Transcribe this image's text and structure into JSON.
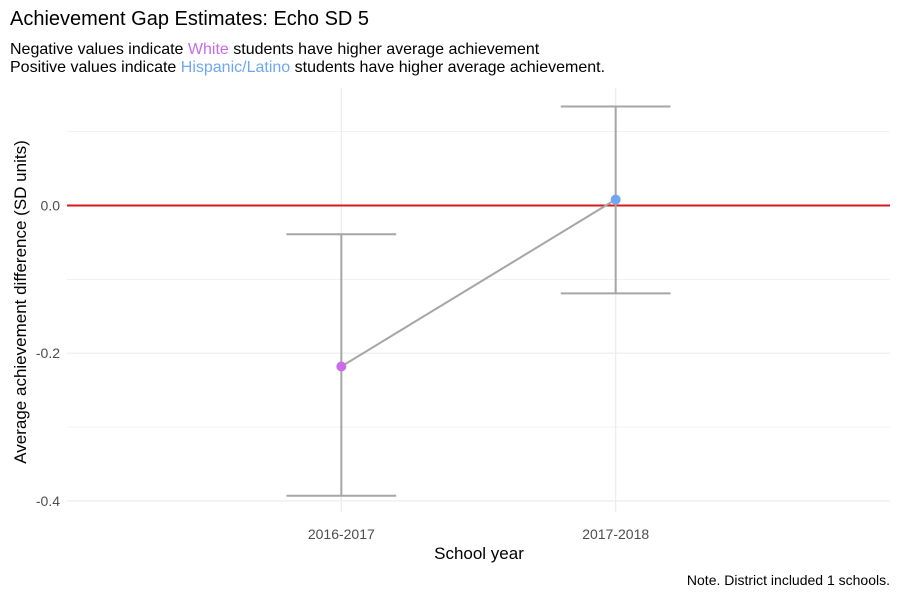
{
  "chart_data": {
    "type": "errorbar-line",
    "title": "Achievement Gap Estimates: Echo SD 5",
    "subtitle": {
      "line1": {
        "pre": "Negative values indicate ",
        "group": "White",
        "post": " students have higher average achievement"
      },
      "line2": {
        "pre": "Positive values indicate ",
        "group": "Hispanic/Latino",
        "post": " students have higher average achievement."
      }
    },
    "xlabel": "School year",
    "ylabel": "Average achievement difference (SD units)",
    "caption": "Note. District included 1 schools.",
    "categories": [
      "2016-2017",
      "2017-2018"
    ],
    "points": [
      {
        "x": "2016-2017",
        "y": -0.218,
        "lower": -0.393,
        "upper": -0.039,
        "color": "#C86CEA"
      },
      {
        "x": "2017-2018",
        "y": 0.008,
        "lower": -0.119,
        "upper": 0.134,
        "color": "#6FA8F0"
      }
    ],
    "ylim": [
      -0.415,
      0.159
    ],
    "yticks": [
      -0.4,
      -0.2,
      0.0
    ],
    "ytick_labels": [
      "-0.4",
      "-0.2",
      "0.0"
    ],
    "reference_line": {
      "y": 0,
      "color": "#D7191C"
    },
    "colors": {
      "white_group": "#C86CEA",
      "hispanic_group": "#6FA8F0",
      "errorbar": "#A6A6A6",
      "connector": "#A6A6A6",
      "grid": "#EBEBEB"
    },
    "grid": true,
    "legend": "none"
  }
}
